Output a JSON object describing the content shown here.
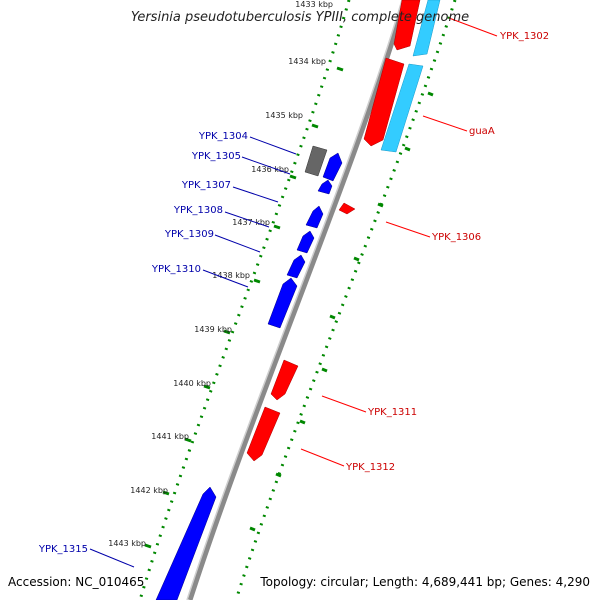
{
  "title": "Yersinia pseudotuberculosis YPIII, complete genome",
  "footer": {
    "accession": "Accession: NC_010465",
    "summary": "Topology: circular; Length: 4,689,441 bp; Genes: 4,290"
  },
  "colors": {
    "forward": "#ff0000",
    "reverse": "#0000ff",
    "rna": "#33ccff",
    "other": "#666666",
    "ticks": "#008800",
    "backbone": "#999999"
  },
  "kbp_labels": [
    "1433 kbp",
    "1434 kbp",
    "1435 kbp",
    "1436 kbp",
    "1437 kbp",
    "1438 kbp",
    "1439 kbp",
    "1440 kbp",
    "1441 kbp",
    "1442 kbp",
    "1443 kbp"
  ],
  "gene_labels": {
    "YPK_1302": "YPK_1302",
    "guaA": "guaA",
    "YPK_1306": "YPK_1306",
    "YPK_1311": "YPK_1311",
    "YPK_1312": "YPK_1312",
    "YPK_1304": "YPK_1304",
    "YPK_1305": "YPK_1305",
    "YPK_1307": "YPK_1307",
    "YPK_1308": "YPK_1308",
    "YPK_1309": "YPK_1309",
    "YPK_1310": "YPK_1310",
    "YPK_1315": "YPK_1315"
  }
}
